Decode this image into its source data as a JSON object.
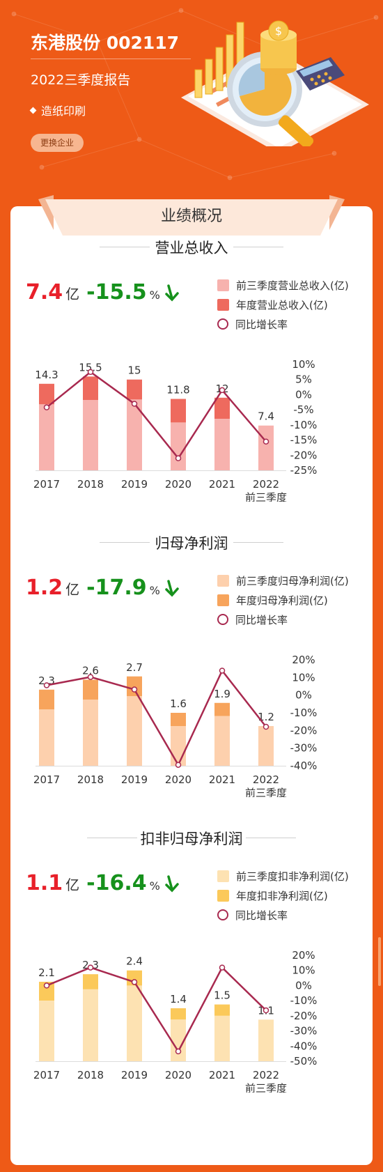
{
  "header": {
    "title": "东港股份 002117",
    "subtitle": "2022三季度报告",
    "industry": "造纸印刷",
    "change_button": "更换企业"
  },
  "overview_title": "业绩概况",
  "colors": {
    "background": "#ee5a17",
    "red": "#e8202a",
    "green": "#16911c",
    "line": "#a8294f"
  },
  "sections": [
    {
      "title": "营业总收入",
      "kpi": {
        "value": "7.4",
        "unit": "亿",
        "change": "-15.5",
        "pct": "%"
      },
      "legend": {
        "q3": "前三季度营业总收入(亿)",
        "annual": "年度营业总收入(亿)",
        "growth": "同比增长率"
      },
      "colors": {
        "q3": "#f7b2ae",
        "annual": "#ee6a5e"
      }
    },
    {
      "title": "归母净利润",
      "kpi": {
        "value": "1.2",
        "unit": "亿",
        "change": "-17.9",
        "pct": "%"
      },
      "legend": {
        "q3": "前三季度归母净利润(亿)",
        "annual": "年度归母净利润(亿)",
        "growth": "同比增长率"
      },
      "colors": {
        "q3": "#fdd0ad",
        "annual": "#f7a45c"
      }
    },
    {
      "title": "扣非归母净利润",
      "kpi": {
        "value": "1.1",
        "unit": "亿",
        "change": "-16.4",
        "pct": "%"
      },
      "legend": {
        "q3": "前三季度扣非净利润(亿)",
        "annual": "年度扣非净利润(亿)",
        "growth": "同比增长率"
      },
      "colors": {
        "q3": "#fde2b2",
        "annual": "#fbc95a"
      }
    }
  ],
  "chart_data": [
    {
      "type": "bar",
      "categories": [
        "2017",
        "2018",
        "2019",
        "2020",
        "2021",
        "2022\n前三季度"
      ],
      "series": [
        {
          "name": "前三季度营业总收入(亿)",
          "values": [
            10.9,
            11.6,
            11.7,
            7.9,
            8.5,
            7.4
          ]
        },
        {
          "name": "年度营业总收入(亿)",
          "values": [
            14.3,
            15.5,
            15,
            11.8,
            12,
            null
          ]
        },
        {
          "name": "同比增长率",
          "type": "line",
          "values": [
            -4.2,
            7.5,
            -3,
            -21,
            1.5,
            -15.5
          ]
        }
      ],
      "bar_labels": [
        "14.3",
        "15.5",
        "15",
        "11.8",
        "12",
        "7.4"
      ],
      "y2_ticks": [
        "10%",
        "5%",
        "0%",
        "-5%",
        "-10%",
        "-15%",
        "-20%",
        "-25%"
      ],
      "y2lim": [
        -25,
        10
      ],
      "ylim": [
        0,
        17.5
      ]
    },
    {
      "type": "bar",
      "categories": [
        "2017",
        "2018",
        "2019",
        "2020",
        "2021",
        "2022\n前三季度"
      ],
      "series": [
        {
          "name": "前三季度归母净利润(亿)",
          "values": [
            1.7,
            2.0,
            2.1,
            1.2,
            1.5,
            1.2
          ]
        },
        {
          "name": "年度归母净利润(亿)",
          "values": [
            2.3,
            2.6,
            2.7,
            1.6,
            1.9,
            null
          ]
        },
        {
          "name": "同比增长率",
          "type": "line",
          "values": [
            5.6,
            10.3,
            3.2,
            -39.5,
            13.9,
            -17.9
          ]
        }
      ],
      "bar_labels": [
        "2.3",
        "2.6",
        "2.7",
        "1.6",
        "1.9",
        "1.2"
      ],
      "y2_ticks": [
        "20%",
        "10%",
        "0%",
        "-10%",
        "-20%",
        "-30%",
        "-40%"
      ],
      "y2lim": [
        -40,
        20
      ],
      "ylim": [
        0,
        3.2
      ]
    },
    {
      "type": "bar",
      "categories": [
        "2017",
        "2018",
        "2019",
        "2020",
        "2021",
        "2022\n前三季度"
      ],
      "series": [
        {
          "name": "前三季度扣非净利润(亿)",
          "values": [
            1.6,
            1.9,
            2.0,
            1.1,
            1.2,
            1.1
          ]
        },
        {
          "name": "年度扣非净利润(亿)",
          "values": [
            2.1,
            2.3,
            2.4,
            1.4,
            1.5,
            null
          ]
        },
        {
          "name": "同比增长率",
          "type": "line",
          "values": [
            0,
            11.9,
            2.3,
            -43.5,
            11.9,
            -16.4
          ]
        }
      ],
      "bar_labels": [
        "2.1",
        "2.3",
        "2.4",
        "1.4",
        "1.5",
        "1.1"
      ],
      "y2_ticks": [
        "20%",
        "10%",
        "0%",
        "-10%",
        "-20%",
        "-30%",
        "-40%",
        "-50%"
      ],
      "y2lim": [
        -50,
        20
      ],
      "ylim": [
        0,
        2.8
      ]
    }
  ]
}
